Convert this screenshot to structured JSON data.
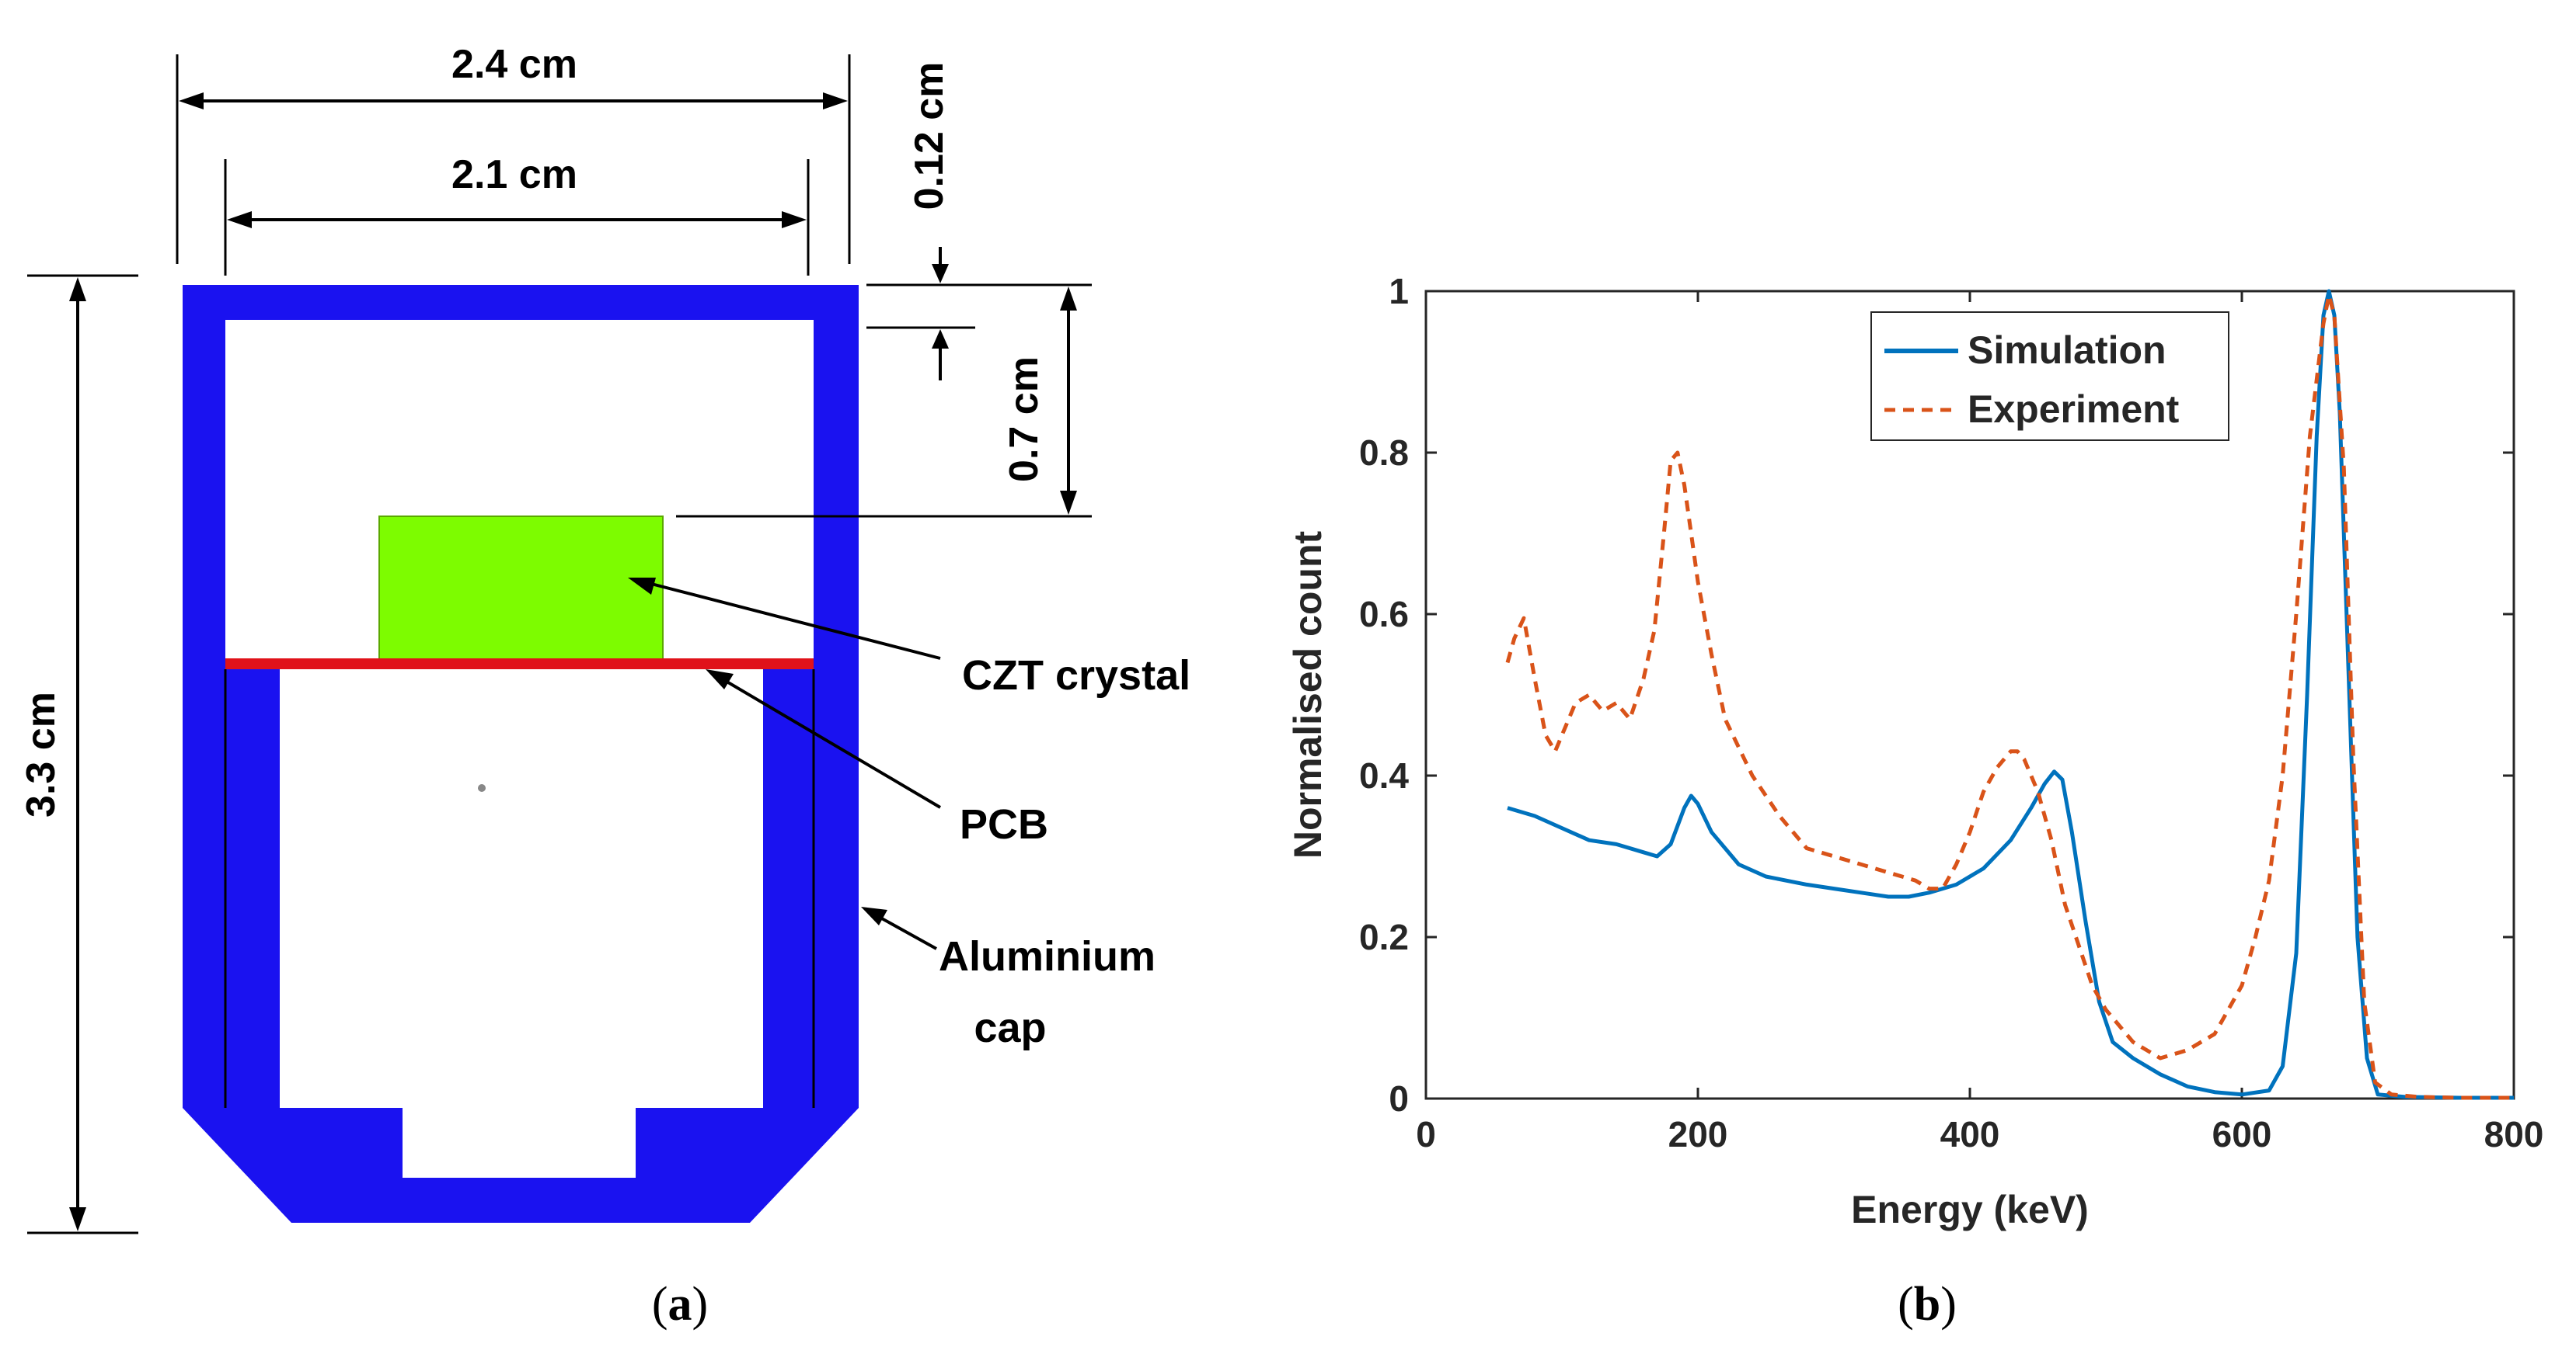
{
  "diagram": {
    "dimensions": {
      "outer_width": "2.4 cm",
      "inner_width": "2.1 cm",
      "cap_thickness": "0.12 cm",
      "gap": "0.7 cm",
      "height": "3.3 cm"
    },
    "labels": {
      "crystal_line1": "CZT crystal",
      "pcb": "PCB",
      "cap_line1": "Aluminium",
      "cap_line2": "cap"
    },
    "colors": {
      "cap": "#1a12f0",
      "crystal": "#7dfc00",
      "pcb": "#e0121a"
    },
    "caption_paren_open": "(",
    "caption_letter": "a",
    "caption_paren_close": ")"
  },
  "caption_b_open": "(",
  "caption_b_letter": "b",
  "caption_b_close": ")",
  "chart_data": {
    "type": "line",
    "title": "",
    "xlabel": "Energy (keV)",
    "ylabel": "Normalised count",
    "xlim": [
      0,
      800
    ],
    "ylim": [
      0,
      1
    ],
    "xticks": [
      "0",
      "200",
      "400",
      "600",
      "800"
    ],
    "yticks": [
      "0",
      "0.2",
      "0.4",
      "0.6",
      "0.8",
      "1"
    ],
    "legend_position": "top-center",
    "series": [
      {
        "name": "Simulation",
        "color": "#0072bd",
        "style": "solid",
        "x": [
          60,
          80,
          100,
          120,
          140,
          160,
          170,
          180,
          190,
          195,
          200,
          210,
          230,
          250,
          280,
          300,
          320,
          340,
          355,
          370,
          390,
          410,
          430,
          445,
          455,
          462,
          468,
          475,
          485,
          495,
          505,
          520,
          540,
          560,
          580,
          600,
          620,
          630,
          640,
          648,
          655,
          660,
          664,
          668,
          672,
          678,
          685,
          692,
          700,
          720,
          760,
          800
        ],
        "values": [
          0.36,
          0.35,
          0.335,
          0.32,
          0.315,
          0.305,
          0.3,
          0.315,
          0.36,
          0.375,
          0.365,
          0.33,
          0.29,
          0.275,
          0.265,
          0.26,
          0.255,
          0.25,
          0.25,
          0.255,
          0.265,
          0.285,
          0.32,
          0.36,
          0.39,
          0.405,
          0.395,
          0.33,
          0.22,
          0.12,
          0.07,
          0.05,
          0.03,
          0.015,
          0.008,
          0.005,
          0.01,
          0.04,
          0.18,
          0.5,
          0.82,
          0.97,
          1.0,
          0.97,
          0.85,
          0.55,
          0.2,
          0.05,
          0.005,
          0.002,
          0.001,
          0.001
        ]
      },
      {
        "name": "Experiment",
        "color": "#d95319",
        "style": "dashed",
        "x": [
          60,
          65,
          72,
          80,
          88,
          95,
          100,
          110,
          120,
          130,
          140,
          150,
          160,
          168,
          175,
          180,
          185,
          190,
          195,
          200,
          210,
          220,
          240,
          260,
          280,
          300,
          320,
          340,
          360,
          370,
          380,
          390,
          400,
          410,
          420,
          430,
          435,
          440,
          450,
          460,
          470,
          480,
          490,
          500,
          510,
          520,
          530,
          540,
          560,
          580,
          600,
          610,
          620,
          630,
          640,
          650,
          660,
          664,
          668,
          675,
          682,
          690,
          698,
          710,
          730,
          760,
          800
        ],
        "values": [
          0.54,
          0.57,
          0.595,
          0.52,
          0.45,
          0.43,
          0.45,
          0.49,
          0.5,
          0.48,
          0.49,
          0.47,
          0.52,
          0.58,
          0.7,
          0.79,
          0.8,
          0.76,
          0.7,
          0.64,
          0.55,
          0.47,
          0.4,
          0.35,
          0.31,
          0.3,
          0.29,
          0.28,
          0.27,
          0.26,
          0.26,
          0.29,
          0.33,
          0.38,
          0.41,
          0.43,
          0.43,
          0.42,
          0.38,
          0.32,
          0.24,
          0.19,
          0.14,
          0.11,
          0.09,
          0.07,
          0.06,
          0.05,
          0.06,
          0.08,
          0.14,
          0.2,
          0.27,
          0.4,
          0.6,
          0.82,
          0.96,
          0.995,
          0.97,
          0.78,
          0.42,
          0.12,
          0.02,
          0.005,
          0.002,
          0.001,
          0.001
        ]
      }
    ]
  }
}
